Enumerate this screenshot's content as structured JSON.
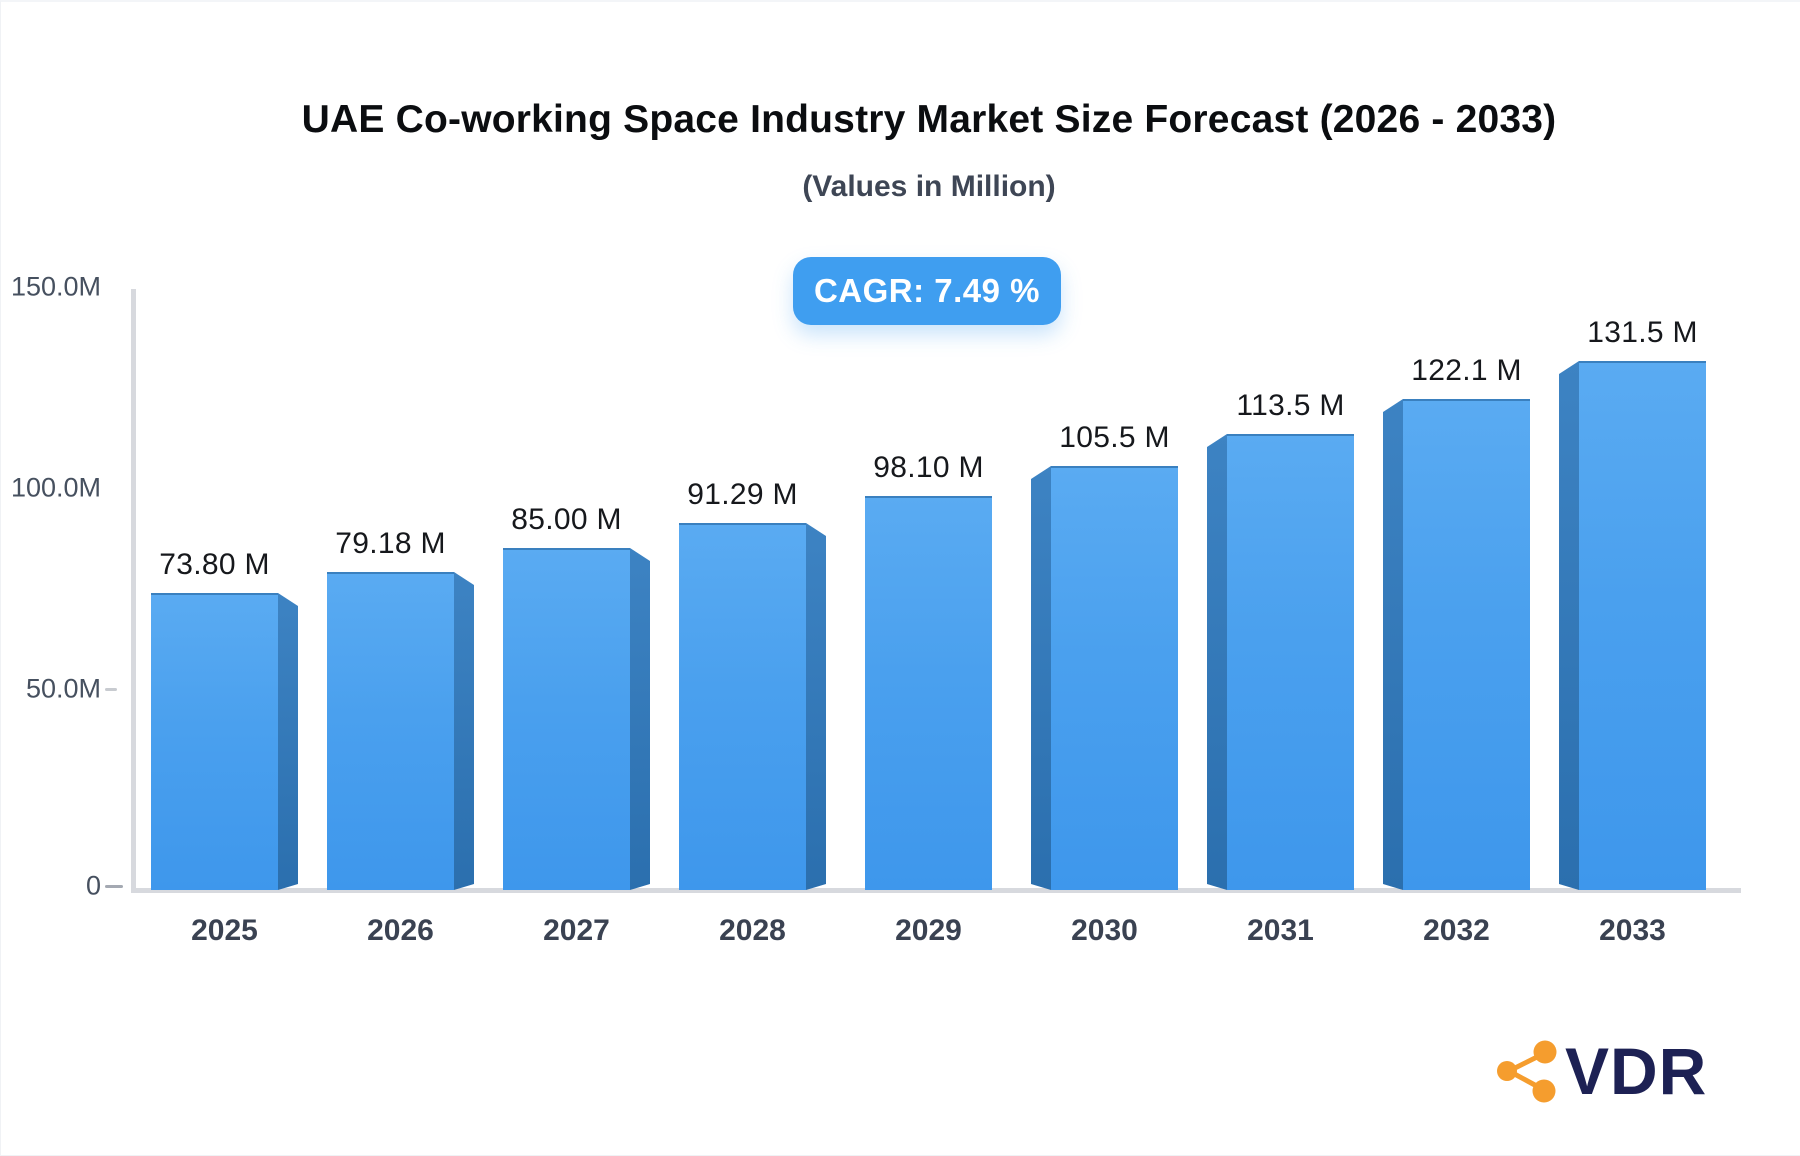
{
  "header": {
    "title": "UAE Co-working Space Industry Market Size Forecast (2026 - 2033)",
    "subtitle": "(Values in Million)",
    "cagr_label": "CAGR: 7.49 %"
  },
  "footer": {
    "logo_text": "VDR",
    "logo_icon": "share-network-icon"
  },
  "colors": {
    "bar_face_top": "#5aabf2",
    "bar_face_bottom": "#3e97ec",
    "bar_side": "#2e74b5",
    "badge_bg": "#3f9ef0",
    "badge_text": "#ffffff",
    "axis_line": "#d7d9de",
    "logo_orange": "#f59d2e",
    "logo_navy": "#1d2154"
  },
  "chart_data": {
    "type": "bar",
    "title": "UAE Co-working Space Industry Market Size Forecast (2026 - 2033)",
    "subtitle": "(Values in Million)",
    "annotation": "CAGR: 7.49 %",
    "categories": [
      "2025",
      "2026",
      "2027",
      "2028",
      "2029",
      "2030",
      "2031",
      "2032",
      "2033"
    ],
    "values": [
      73.8,
      79.18,
      85.0,
      91.29,
      98.1,
      105.5,
      113.5,
      122.1,
      131.5
    ],
    "value_labels": [
      "73.80 M",
      "79.18 M",
      "85.00 M",
      "91.29 M",
      "98.10 M",
      "105.5 M",
      "113.5 M",
      "122.1 M",
      "131.5 M"
    ],
    "xlabel": "",
    "ylabel": "",
    "ylim": [
      0,
      150
    ],
    "y_axis": {
      "ticks": [
        {
          "label": "150.0M",
          "value": 150,
          "dash": false
        },
        {
          "label": "100.0M",
          "value": 100,
          "dash": false
        },
        {
          "label": "50.0M",
          "value": 50,
          "dash": true
        },
        {
          "label": "0",
          "value": 0,
          "dash": true
        }
      ]
    },
    "grid": false,
    "legend": false,
    "style": "3d-columns, blue gradient faces with darker beveled sides facing away from center"
  }
}
